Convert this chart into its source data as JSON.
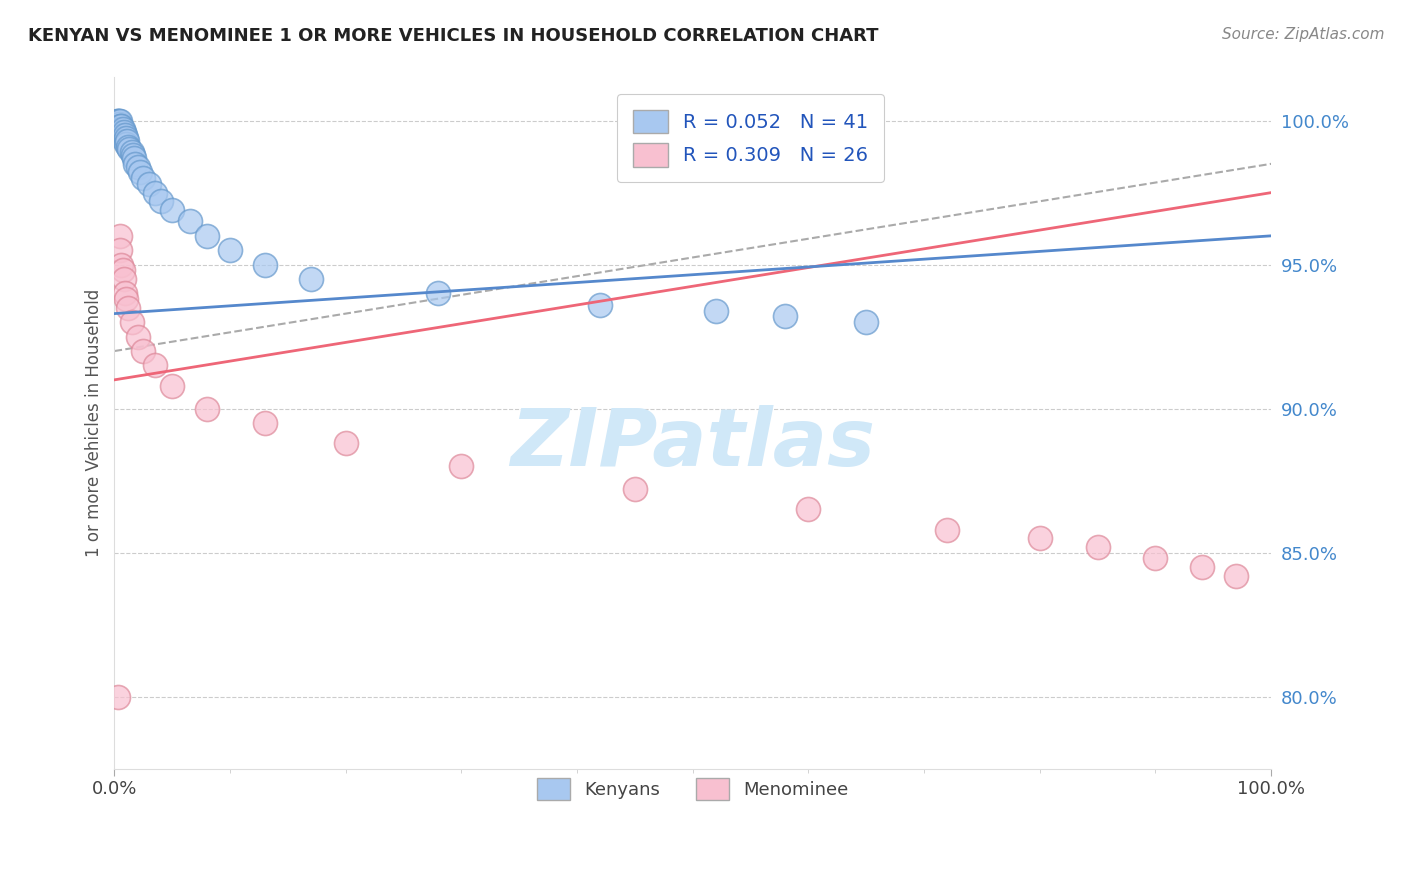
{
  "title": "KENYAN VS MENOMINEE 1 OR MORE VEHICLES IN HOUSEHOLD CORRELATION CHART",
  "source": "Source: ZipAtlas.com",
  "ylabel": "1 or more Vehicles in Household",
  "ytick_labels": [
    "80.0%",
    "85.0%",
    "90.0%",
    "95.0%",
    "100.0%"
  ],
  "ytick_values": [
    0.8,
    0.85,
    0.9,
    0.95,
    1.0
  ],
  "xlim": [
    0.0,
    1.0
  ],
  "ylim": [
    0.775,
    1.015
  ],
  "kenyan_color": "#a8c8f0",
  "kenyan_edge_color": "#6699cc",
  "menominee_color": "#f8c0d0",
  "menominee_edge_color": "#dd8899",
  "trendline_kenyan_color": "#5588cc",
  "trendline_menominee_color": "#ee6677",
  "trendline_dashed_color": "#aaaaaa",
  "watermark_color": "#d0e8f8",
  "kenyan_x": [
    0.002,
    0.003,
    0.004,
    0.004,
    0.005,
    0.005,
    0.005,
    0.006,
    0.006,
    0.007,
    0.007,
    0.008,
    0.008,
    0.009,
    0.009,
    0.01,
    0.01,
    0.011,
    0.012,
    0.013,
    0.015,
    0.016,
    0.017,
    0.018,
    0.02,
    0.022,
    0.025,
    0.03,
    0.035,
    0.04,
    0.05,
    0.065,
    0.08,
    0.1,
    0.13,
    0.17,
    0.28,
    0.42,
    0.52,
    0.58,
    0.65
  ],
  "kenyan_y": [
    1.0,
    1.0,
    1.0,
    0.999,
    1.0,
    0.998,
    0.997,
    0.998,
    0.996,
    0.997,
    0.995,
    0.996,
    0.994,
    0.995,
    0.993,
    0.994,
    0.992,
    0.993,
    0.991,
    0.99,
    0.989,
    0.988,
    0.987,
    0.985,
    0.984,
    0.982,
    0.98,
    0.978,
    0.975,
    0.972,
    0.969,
    0.965,
    0.96,
    0.955,
    0.95,
    0.945,
    0.94,
    0.936,
    0.934,
    0.932,
    0.93
  ],
  "menominee_x": [
    0.003,
    0.005,
    0.005,
    0.006,
    0.007,
    0.008,
    0.009,
    0.01,
    0.012,
    0.015,
    0.02,
    0.025,
    0.035,
    0.05,
    0.08,
    0.13,
    0.2,
    0.3,
    0.45,
    0.6,
    0.72,
    0.8,
    0.85,
    0.9,
    0.94,
    0.97
  ],
  "menominee_y": [
    0.8,
    0.96,
    0.955,
    0.95,
    0.948,
    0.945,
    0.94,
    0.938,
    0.935,
    0.93,
    0.925,
    0.92,
    0.915,
    0.908,
    0.9,
    0.895,
    0.888,
    0.88,
    0.872,
    0.865,
    0.858,
    0.855,
    0.852,
    0.848,
    0.845,
    0.842
  ],
  "kenyan_trendline_x0": 0.0,
  "kenyan_trendline_y0": 0.933,
  "kenyan_trendline_x1": 1.0,
  "kenyan_trendline_y1": 0.96,
  "menominee_trendline_x0": 0.0,
  "menominee_trendline_y0": 0.91,
  "menominee_trendline_x1": 1.0,
  "menominee_trendline_y1": 0.975,
  "dashed_trendline_x0": 0.0,
  "dashed_trendline_y0": 0.92,
  "dashed_trendline_x1": 1.0,
  "dashed_trendline_y1": 0.985
}
